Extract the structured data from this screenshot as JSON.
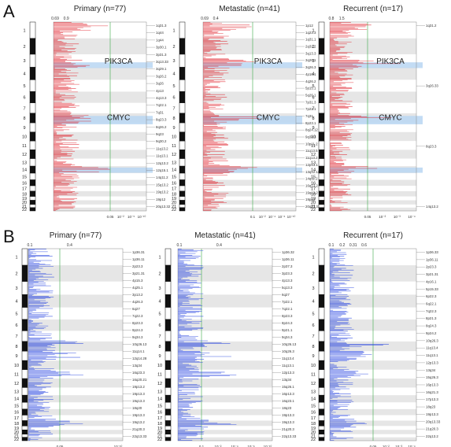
{
  "panel_labels": [
    "A",
    "B"
  ],
  "colors": {
    "amp": "#e0202a",
    "del": "#1f3fe0",
    "band_gray": "#e6e6e6",
    "highlight": "#b9d6f2",
    "sig_line": "#3aa845",
    "ideogram": "#111111"
  },
  "chart_data": [
    {
      "type": "bar",
      "panel": "A",
      "title": "Primary (n=77)",
      "top_ticks": [
        "0.69",
        "0.9"
      ],
      "bottom_ticks": [
        "0.05",
        "10⁻²",
        "10⁻⁵",
        "10⁻¹⁰"
      ],
      "chromosomes": [
        "1",
        "2",
        "3",
        "4",
        "5",
        "6",
        "7",
        "8",
        "9",
        "10",
        "11",
        "12",
        "13",
        "14",
        "15",
        "16",
        "17",
        "18",
        "19",
        "20",
        "21",
        "22"
      ],
      "cytobands": [
        "1q31.3",
        "1q44",
        "1q44",
        "3p30.1",
        "3p31.3",
        "3q13.33",
        "3q29.1",
        "3q26.2",
        "3q26",
        "4p13",
        "4q13.3",
        "7q22.1",
        "7q31",
        "8q23.3",
        "8q26.2",
        "9q23",
        "9q30.2",
        "11q13.2",
        "11q13.1",
        "12q13.2",
        "12q15.1",
        "14q11.2",
        "15q13.2",
        "19q13.2",
        "19p12",
        "20q13.32"
      ],
      "genes": [
        {
          "name": "PIK3CA",
          "band": "3q26.32"
        },
        {
          "name": "CMYC",
          "band": "8q24.21"
        }
      ]
    },
    {
      "type": "bar",
      "panel": "A",
      "title": "Metastatic (n=41)",
      "top_ticks": [
        "0.69",
        "0.4"
      ],
      "bottom_ticks": [
        "0.1",
        "10⁻²",
        "10⁻⁴",
        "10⁻⁶",
        "10⁻¹⁰"
      ],
      "chromosomes": [
        "1",
        "2",
        "3",
        "4",
        "5",
        "6",
        "7",
        "8",
        "9",
        "10",
        "11",
        "12",
        "13",
        "14",
        "15",
        "16",
        "17",
        "18",
        "19",
        "20",
        "21",
        "22"
      ],
      "cytobands": [
        "1p12",
        "1q23.3",
        "1q31.1",
        "2q31.2",
        "3q13.3",
        "3q26.1",
        "3q26.3",
        "4p16.1",
        "4q26.2",
        "5p15.1",
        "5q26.1",
        "7p31.3",
        "7p22.1",
        "7q31",
        "8p23.1",
        "8q24.12",
        "9q34.3",
        "10p11.2",
        "11q13.5",
        "11q13.2",
        "12p13.1",
        "13q12.11",
        "14q11.2",
        "16q13.2",
        "19q13.2",
        "19p12",
        "20q13.33"
      ],
      "genes": [
        {
          "name": "PIK3CA",
          "band": "3q26.32"
        },
        {
          "name": "CMYC",
          "band": "8q24.21"
        }
      ]
    },
    {
      "type": "bar",
      "panel": "A",
      "title": "Recurrent (n=17)",
      "top_ticks": [
        "0.8",
        "1.5"
      ],
      "bottom_ticks": [
        "0.05",
        "10⁻²",
        "10⁻³",
        "10⁻⁴"
      ],
      "chromosomes": [
        "1",
        "2",
        "3",
        "4",
        "5",
        "6",
        "7",
        "8",
        "9",
        "10",
        "11",
        "12",
        "13",
        "14",
        "15",
        "16",
        "17",
        "18",
        "19",
        "20",
        "21",
        "22"
      ],
      "cytobands": [
        "1q31.2",
        "3q26.33",
        "8q23.3",
        "14q13.2"
      ],
      "genes": [
        {
          "name": "PIK3CA",
          "band": "3q26.32"
        },
        {
          "name": "CMYC",
          "band": "8q24.21"
        }
      ]
    },
    {
      "type": "bar",
      "panel": "B",
      "title": "Primary (n=77)",
      "top_ticks": [
        "0.1",
        "0.4"
      ],
      "bottom_ticks": [
        "0.05",
        "10⁻¹⁰"
      ],
      "chromosomes": [
        "1",
        "2",
        "3",
        "4",
        "5",
        "6",
        "7",
        "8",
        "9",
        "10",
        "11",
        "12",
        "13",
        "14",
        "15",
        "16",
        "17",
        "18",
        "19",
        "20",
        "21",
        "22"
      ],
      "cytobands": [
        "1p36.31",
        "1p36.11",
        "2p23.3",
        "3p21.31",
        "4p15.3",
        "4q25.1",
        "3p13.2",
        "4q26.3",
        "6q27",
        "7q22.3",
        "8p23.3",
        "9p24.3",
        "9q34.3",
        "10q26.13",
        "11q14.1",
        "12q14.28",
        "13q34",
        "16q23.3",
        "16q20.21",
        "19p13.2",
        "19p13.3",
        "19q13.3",
        "18q20",
        "19p13.3",
        "19q13.2",
        "21q20.3",
        "22q13.33"
      ]
    },
    {
      "type": "bar",
      "panel": "B",
      "title": "Metastatic (n=41)",
      "top_ticks": [
        "0.1",
        "0.4"
      ],
      "bottom_ticks": [
        "0.1",
        "10⁻²",
        "10⁻⁴",
        "10⁻⁶",
        "10⁻¹⁰"
      ],
      "chromosomes": [
        "1",
        "2",
        "3",
        "4",
        "5",
        "6",
        "7",
        "8",
        "9",
        "10",
        "11",
        "12",
        "13",
        "14",
        "15",
        "16",
        "17",
        "18",
        "19",
        "20",
        "21",
        "22"
      ],
      "cytobands": [
        "1p36.32",
        "1p36.11",
        "2p37.3",
        "3p23.3",
        "4p13.3",
        "5q13.3",
        "6q27",
        "7p22.1",
        "7q22.1",
        "8p23.3",
        "8p24.3",
        "9p21.1",
        "9q34.3",
        "10q26.13",
        "10q26.3",
        "11q13.4",
        "11q13.1",
        "12p13.3",
        "13q34",
        "15q26.1",
        "16p13.3",
        "16q23.1",
        "18q23",
        "19p13.3",
        "19q13.3",
        "21q20.3",
        "22q13.33"
      ]
    },
    {
      "type": "bar",
      "panel": "B",
      "title": "Recurrent (n=17)",
      "top_ticks": [
        "0.1",
        "0.2",
        "0.31",
        "0.6"
      ],
      "bottom_ticks": [
        "0.05",
        "10⁻²",
        "10⁻³",
        "10⁻⁴"
      ],
      "chromosomes": [
        "1",
        "2",
        "3",
        "4",
        "5",
        "6",
        "7",
        "8",
        "9",
        "10",
        "11",
        "12",
        "13",
        "14",
        "15",
        "16",
        "17",
        "18",
        "19",
        "20",
        "21",
        "22"
      ],
      "cytobands": [
        "1p36.33",
        "1p36.11",
        "2p23.3",
        "3p21.31",
        "4p16.1",
        "5p15.33",
        "6p22.3",
        "6q22.1",
        "7q22.3",
        "8p21.3",
        "8q24.3",
        "9p24.2",
        "10q26.3",
        "11q13.4",
        "11q13.1",
        "12p13.3",
        "13q34",
        "15q26.3",
        "16p13.3",
        "16q21.3",
        "17p13.3",
        "18q23",
        "19p13.3",
        "20q13.33",
        "21q20.3",
        "22q13.2"
      ]
    }
  ]
}
